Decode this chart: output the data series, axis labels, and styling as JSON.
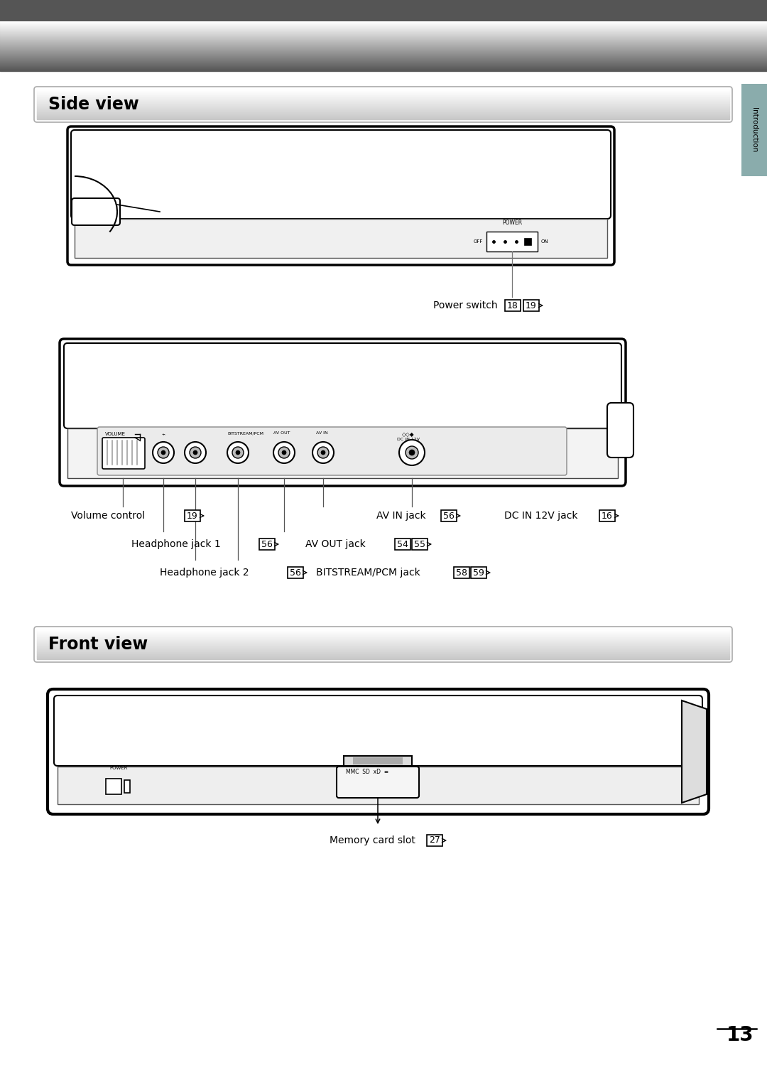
{
  "bg_color": "#ffffff",
  "side_tab_color": "#8aacac",
  "side_tab_text": "Introduction",
  "side_view_title": "Side view",
  "front_view_title": "Front view",
  "page_number": "13",
  "power_switch_label": "Power switch",
  "volume_control_label": "Volume control",
  "volume_control_num": "19",
  "headphone1_label": "Headphone jack 1",
  "headphone1_num": "56",
  "headphone2_label": "Headphone jack 2",
  "headphone2_num": "56",
  "bitstream_label": "BITSTREAM/PCM jack",
  "bitstream_num1": "58",
  "bitstream_num2": "59",
  "av_in_label": "AV IN jack",
  "av_in_num": "56",
  "dc_in_label": "DC IN 12V jack",
  "dc_in_num": "16",
  "av_out_label": "AV OUT jack",
  "av_out_num1": "54",
  "av_out_num2": "55",
  "memory_card_label": "Memory card slot",
  "memory_card_num": "27",
  "ps_num1": "18",
  "ps_num2": "19"
}
